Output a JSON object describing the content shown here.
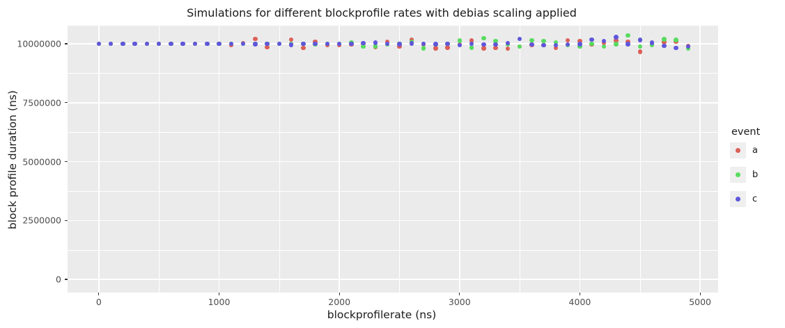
{
  "chart_data": {
    "type": "scatter",
    "title": "Simulations for different blockprofile rates with debias scaling applied",
    "xlabel": "blockprofilerate (ns)",
    "ylabel": "block profile duration (ns)",
    "xlim": [
      -260,
      5150
    ],
    "ylim": [
      -560000,
      10770000
    ],
    "x_ticks": [
      0,
      1000,
      2000,
      3000,
      4000,
      5000
    ],
    "y_ticks": [
      0,
      2500000,
      5000000,
      7500000,
      10000000
    ],
    "x_minor_ticks": [
      500,
      1500,
      2500,
      3500,
      4500
    ],
    "y_minor_ticks": [
      1250000,
      3750000,
      6250000,
      8750000
    ],
    "grid": "on",
    "panel_background": "#EBEBEB",
    "gridline_color": "#FFFFFF",
    "legend": {
      "title": "event",
      "position": "right",
      "entries": [
        {
          "label": "a",
          "color": "#db5f57"
        },
        {
          "label": "b",
          "color": "#57db5f"
        },
        {
          "label": "c",
          "color": "#5f57db"
        }
      ]
    },
    "x": [
      0,
      100,
      200,
      300,
      400,
      500,
      600,
      700,
      800,
      900,
      1000,
      1100,
      1200,
      1300,
      1400,
      1500,
      1600,
      1700,
      1800,
      1900,
      2000,
      2100,
      2200,
      2300,
      2400,
      2500,
      2600,
      2700,
      2800,
      2900,
      3000,
      3100,
      3200,
      3300,
      3400,
      3500,
      3600,
      3700,
      3800,
      3900,
      4000,
      4100,
      4200,
      4300,
      4400,
      4500,
      4600,
      4700,
      4800,
      4900
    ],
    "series": [
      {
        "name": "a",
        "color": "#db5f57",
        "values": [
          10000000,
          10000000,
          10000000,
          10000000,
          10000000,
          10000000,
          10000000,
          10000000,
          10000000,
          10000000,
          10000000,
          9940000,
          10030000,
          10215000,
          9850000,
          10000000,
          10185000,
          9820000,
          10090000,
          9945000,
          9940000,
          9980000,
          10000000,
          9870000,
          10090000,
          9880000,
          10170000,
          9990000,
          9810000,
          9840000,
          9970000,
          10140000,
          9815000,
          9820000,
          9790000,
          9890000,
          9960000,
          9940000,
          9820000,
          10150000,
          10120000,
          9980000,
          10030000,
          10140000,
          10090000,
          9665000,
          9990000,
          10080000,
          10090000,
          9900000
        ]
      },
      {
        "name": "b",
        "color": "#57db5f",
        "values": [
          10000000,
          10000000,
          10000000,
          10000000,
          10000000,
          10000000,
          10000000,
          10000000,
          10000000,
          10000000,
          10000000,
          10000000,
          10000000,
          10000000,
          10000000,
          10000000,
          10000000,
          10000000,
          9990000,
          10000000,
          10000000,
          10040000,
          9890000,
          9900000,
          9980000,
          10000000,
          10070000,
          9810000,
          9970000,
          10000000,
          10140000,
          9840000,
          10235000,
          10120000,
          9970000,
          9880000,
          10150000,
          10120000,
          10060000,
          9950000,
          9880000,
          10000000,
          9890000,
          9990000,
          10355000,
          9890000,
          9960000,
          10190000,
          10160000,
          9800000
        ]
      },
      {
        "name": "c",
        "color": "#5f57db",
        "values": [
          10000000,
          10000000,
          10000000,
          10000000,
          10000000,
          10000000,
          10000000,
          10000000,
          10000000,
          10000000,
          10000000,
          10000000,
          10000000,
          9990000,
          10000000,
          10000000,
          9960000,
          10000000,
          10000000,
          10005000,
          10010000,
          10000000,
          10030000,
          10040000,
          10000000,
          9985000,
          10020000,
          10010000,
          9990000,
          10010000,
          9940000,
          10010000,
          9970000,
          9970000,
          10030000,
          10210000,
          9970000,
          9940000,
          9940000,
          9970000,
          9990000,
          10180000,
          10120000,
          10290000,
          9990000,
          10160000,
          10040000,
          9920000,
          9820000,
          9890000
        ]
      }
    ]
  }
}
